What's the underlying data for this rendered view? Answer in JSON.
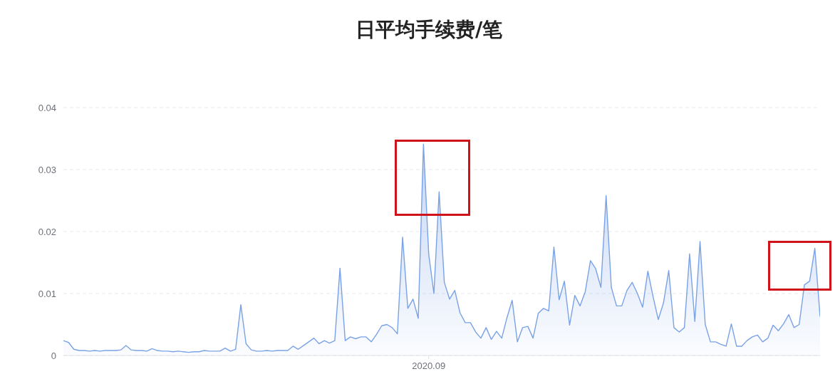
{
  "chart_data": {
    "type": "area",
    "title": "日平均手续费/笔",
    "categories": [
      null,
      null,
      null,
      null,
      null,
      null,
      null,
      null,
      null,
      null,
      null,
      null,
      null,
      null,
      null,
      null,
      null,
      null,
      null,
      null,
      null,
      null,
      null,
      null,
      null,
      null,
      null,
      null,
      null,
      null,
      null,
      null,
      null,
      null,
      null,
      null,
      null,
      null,
      null,
      null,
      null,
      null,
      null,
      null,
      null,
      null,
      null,
      null,
      null,
      null,
      null,
      null,
      null,
      null,
      null,
      null,
      null,
      null,
      null,
      null,
      null,
      null,
      null,
      null,
      null,
      null,
      null,
      null,
      null,
      null,
      "2020.09",
      null,
      null,
      null,
      null,
      null,
      null,
      null,
      null,
      null,
      null,
      null,
      null,
      null,
      null,
      null,
      null,
      null,
      null,
      null,
      null,
      null,
      null,
      null,
      null,
      null,
      null,
      null,
      null,
      null,
      null,
      null,
      null,
      null,
      null,
      null,
      null,
      null,
      null,
      null,
      null,
      null,
      null,
      null,
      null,
      null,
      null,
      null,
      null,
      null,
      null,
      null,
      null,
      null,
      null,
      null,
      null,
      null,
      null,
      null,
      null,
      null,
      null,
      null,
      null,
      null,
      null,
      null,
      null,
      null,
      null,
      null,
      null,
      null,
      null,
      null
    ],
    "series": [
      {
        "color": "#7aa2e6",
        "values": [
          0.0024,
          0.0021,
          0.001,
          0.0008,
          0.0008,
          0.0007,
          0.0008,
          0.0007,
          0.0008,
          0.0008,
          0.0008,
          0.0009,
          0.0016,
          0.0009,
          0.0008,
          0.0008,
          0.0007,
          0.0011,
          0.0008,
          0.0007,
          0.0007,
          0.0006,
          0.0007,
          0.0006,
          0.0005,
          0.0006,
          0.0006,
          0.0008,
          0.0007,
          0.0007,
          0.0007,
          0.0012,
          0.0007,
          0.001,
          0.0082,
          0.0019,
          0.0009,
          0.0007,
          0.0007,
          0.0008,
          0.0007,
          0.0008,
          0.0008,
          0.0008,
          0.0015,
          0.001,
          0.0016,
          0.0022,
          0.0028,
          0.0019,
          0.0024,
          0.002,
          0.0024,
          0.0141,
          0.0024,
          0.003,
          0.0027,
          0.003,
          0.003,
          0.0022,
          0.0034,
          0.0048,
          0.005,
          0.0045,
          0.0035,
          0.0191,
          0.0076,
          0.0091,
          0.006,
          0.0341,
          0.0164,
          0.01,
          0.0264,
          0.0118,
          0.0091,
          0.0105,
          0.0069,
          0.0053,
          0.0053,
          0.0038,
          0.0028,
          0.0045,
          0.0026,
          0.0039,
          0.0028,
          0.0061,
          0.0089,
          0.0022,
          0.0045,
          0.0047,
          0.0028,
          0.0068,
          0.0076,
          0.0072,
          0.0175,
          0.009,
          0.012,
          0.0049,
          0.0097,
          0.008,
          0.0103,
          0.0153,
          0.014,
          0.011,
          0.0258,
          0.011,
          0.008,
          0.008,
          0.0105,
          0.0118,
          0.01,
          0.0078,
          0.0136,
          0.0095,
          0.0058,
          0.0085,
          0.0137,
          0.0045,
          0.0038,
          0.0045,
          0.0164,
          0.0055,
          0.0184,
          0.005,
          0.0022,
          0.0022,
          0.0018,
          0.0015,
          0.0051,
          0.0015,
          0.0015,
          0.0024,
          0.003,
          0.0033,
          0.0022,
          0.0028,
          0.0049,
          0.004,
          0.0051,
          0.0066,
          0.0045,
          0.005,
          0.0114,
          0.012,
          0.0173,
          0.0063
        ]
      }
    ],
    "ylim": [
      0,
      0.04
    ],
    "yticks": [
      0,
      0.01,
      0.02,
      0.03,
      0.04
    ],
    "grid": "y"
  }
}
